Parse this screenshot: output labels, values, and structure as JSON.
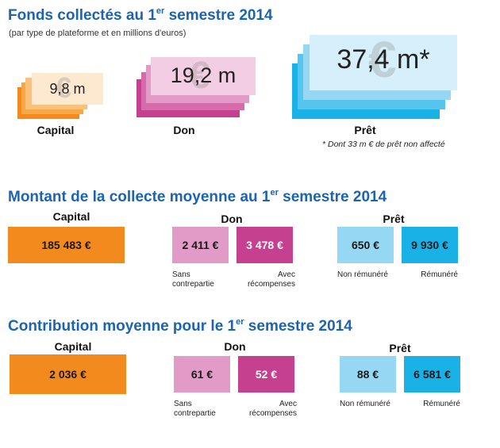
{
  "colors": {
    "title": "#1b64b0",
    "capital": "#f28a1e",
    "capital_light": "#fbd6a0",
    "don_dark": "#c5418f",
    "don_light": "#e29bc6",
    "don_pale": "#f3cde3",
    "pret_dark": "#19b1e6",
    "pret_light": "#96d8f4",
    "pret_pale": "#d6f0fb"
  },
  "section1": {
    "title_pre": "Fonds collectés au 1",
    "title_sup": "er",
    "title_post": " semestre 2014",
    "subtitle": "(par type de plateforme et en millions d'euros)",
    "footnote": "* Dont 33 m € de prêt non affecté"
  },
  "section2": {
    "title_pre": "Montant de la collecte moyenne au 1",
    "title_sup": "er",
    "title_post": " semestre 2014"
  },
  "section3": {
    "title_pre": "Contribution moyenne pour le 1",
    "title_sup": "er",
    "title_post": " semestre 2014"
  },
  "chart_data": [
    {
      "type": "bar",
      "categories": [
        "Capital",
        "Don",
        "Prêt"
      ],
      "values": [
        9.8,
        19.2,
        37.4
      ],
      "value_labels": [
        "9,8 m",
        "19,2 m",
        "37,4 m*"
      ],
      "unit": "millions d'euros",
      "euro_symbol": "€"
    },
    {
      "type": "table",
      "groups": [
        {
          "name": "Capital",
          "items": [
            {
              "value": 185483,
              "label": "185 483 €",
              "sublabel": ""
            }
          ]
        },
        {
          "name": "Don",
          "items": [
            {
              "value": 2411,
              "label": "2 411 €",
              "sublabel": [
                "Sans",
                "contrepartie"
              ]
            },
            {
              "value": 3478,
              "label": "3 478 €",
              "sublabel": [
                "Avec",
                "récompenses"
              ]
            }
          ]
        },
        {
          "name": "Prêt",
          "items": [
            {
              "value": 650,
              "label": "650 €",
              "sublabel": [
                "Non rémunéré"
              ]
            },
            {
              "value": 9930,
              "label": "9 930 €",
              "sublabel": [
                "Rémunéré"
              ]
            }
          ]
        }
      ]
    },
    {
      "type": "table",
      "groups": [
        {
          "name": "Capital",
          "items": [
            {
              "value": 2036,
              "label": "2 036 €",
              "sublabel": ""
            }
          ]
        },
        {
          "name": "Don",
          "items": [
            {
              "value": 61,
              "label": "61 €",
              "sublabel": [
                "Sans",
                "contrepartie"
              ]
            },
            {
              "value": 52,
              "label": "52 €",
              "sublabel": [
                "Avec",
                "récompenses"
              ]
            }
          ]
        },
        {
          "name": "Prêt",
          "items": [
            {
              "value": 88,
              "label": "88 €",
              "sublabel": [
                "Non rémunéré"
              ]
            },
            {
              "value": 6581,
              "label": "6 581 €",
              "sublabel": [
                "Rémunéré"
              ]
            }
          ]
        }
      ]
    }
  ]
}
